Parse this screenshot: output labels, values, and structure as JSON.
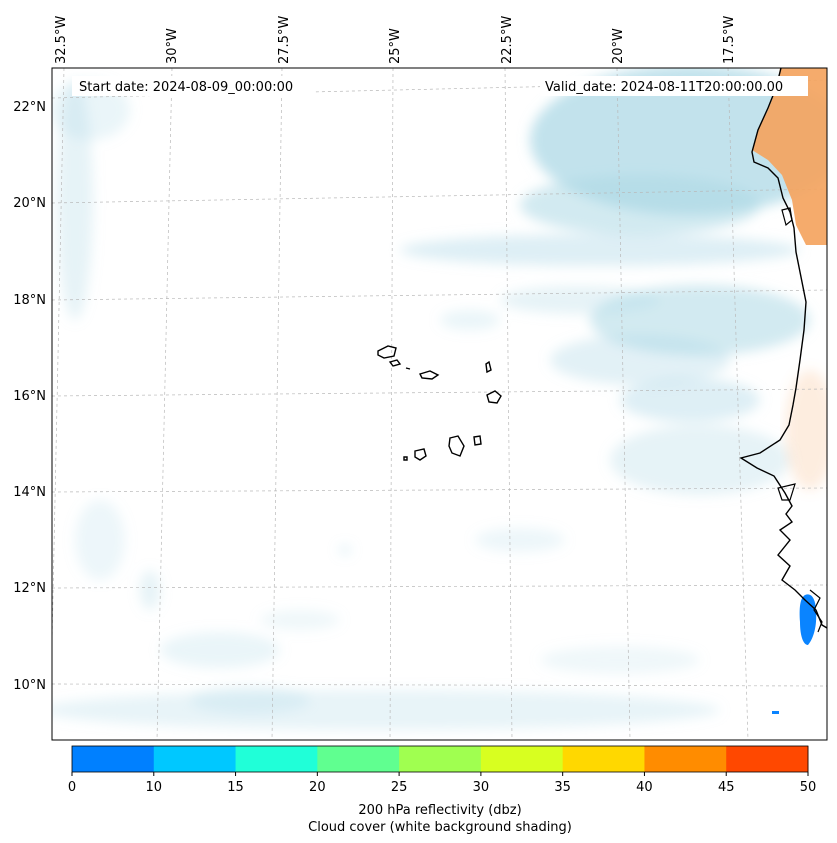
{
  "map": {
    "start_date": "Start date: 2024-08-09_00:00:00",
    "valid_date": "Valid_date: 2024-08-11T20:00:00.00",
    "lon_labels": [
      "32.5°W",
      "30°W",
      "27.5°W",
      "25°W",
      "22.5°W",
      "20°W",
      "17.5°W"
    ],
    "lat_labels": [
      "22°N",
      "20°N",
      "18°N",
      "16°N",
      "14°N",
      "12°N",
      "10°N"
    ]
  },
  "colorbar": {
    "ticks": [
      "0",
      "10",
      "15",
      "20",
      "25",
      "30",
      "35",
      "40",
      "45",
      "50"
    ],
    "colors": [
      "#0080ff",
      "#00c8ff",
      "#20ffd8",
      "#60ff90",
      "#a0ff50",
      "#d8ff20",
      "#ffd800",
      "#ff8c00",
      "#ff4800"
    ],
    "label": "200 hPa reflectivity (dbz)",
    "sublabel": "Cloud cover (white background shading)"
  },
  "colors": {
    "cloud": "#add8e6",
    "land_orange": "#f4a460",
    "reflectivity_blue": "#0a84ff"
  }
}
